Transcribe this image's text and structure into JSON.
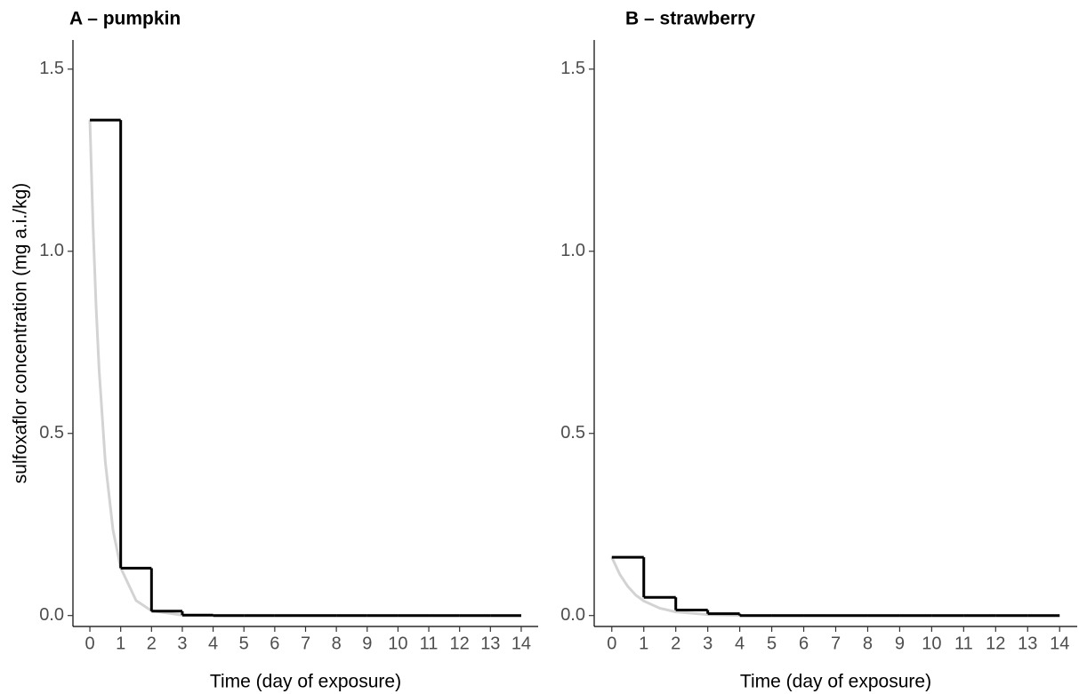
{
  "chart_data": [
    {
      "type": "line",
      "title": "A – pumpkin",
      "x_label": "Time (day of exposure)",
      "y_label": "sulfoxaflor concentration (mg a.i./kg)",
      "xlim": [
        -0.55,
        14.55
      ],
      "ylim": [
        -0.03,
        1.58
      ],
      "xticks": [
        0,
        1,
        2,
        3,
        4,
        5,
        6,
        7,
        8,
        9,
        10,
        11,
        12,
        13,
        14
      ],
      "yticks": [
        {
          "value": 0,
          "label": "0.0"
        },
        {
          "value": 0.5,
          "label": "0.5"
        },
        {
          "value": 1,
          "label": "1.0"
        },
        {
          "value": 1.5,
          "label": "1.5"
        }
      ],
      "series": [
        {
          "color": "#d3d3d3",
          "step": false,
          "x": [
            0,
            0.1,
            0.2,
            0.3,
            0.5,
            0.75,
            1,
            1.5,
            2,
            3,
            14
          ],
          "values": [
            1.36,
            1.076,
            0.851,
            0.674,
            0.422,
            0.235,
            0.131,
            0.041,
            0.013,
            0.001,
            0
          ]
        },
        {
          "color": "#000000",
          "step": true,
          "x": [
            0,
            1,
            2,
            3,
            4,
            5,
            6,
            7,
            8,
            9,
            10,
            11,
            12,
            13,
            14
          ],
          "values": [
            1.36,
            0.13,
            0.012,
            0.001,
            0,
            0,
            0,
            0,
            0,
            0,
            0,
            0,
            0,
            0,
            0
          ]
        }
      ]
    },
    {
      "type": "line",
      "title": "B – strawberry",
      "x_label": "Time (day of exposure)",
      "xlim": [
        -0.55,
        14.55
      ],
      "ylim": [
        -0.03,
        1.58
      ],
      "xticks": [
        0,
        1,
        2,
        3,
        4,
        5,
        6,
        7,
        8,
        9,
        10,
        11,
        12,
        13,
        14
      ],
      "yticks": [
        {
          "value": 0,
          "label": "0.0"
        },
        {
          "value": 0.5,
          "label": "0.5"
        },
        {
          "value": 1,
          "label": "1.0"
        },
        {
          "value": 1.5,
          "label": "1.5"
        }
      ],
      "series": [
        {
          "color": "#d3d3d3",
          "step": false,
          "x": [
            0,
            0.25,
            0.5,
            0.75,
            1,
            1.5,
            2,
            3,
            4,
            14
          ],
          "values": [
            0.16,
            0.113,
            0.08,
            0.056,
            0.04,
            0.02,
            0.01,
            0.0025,
            0.0006,
            0
          ]
        },
        {
          "color": "#000000",
          "step": true,
          "x": [
            0,
            1,
            2,
            3,
            4,
            5,
            6,
            7,
            8,
            9,
            10,
            11,
            12,
            13,
            14
          ],
          "values": [
            0.16,
            0.05,
            0.015,
            0.005,
            0,
            0,
            0,
            0,
            0,
            0,
            0,
            0,
            0,
            0,
            0
          ]
        }
      ]
    }
  ]
}
